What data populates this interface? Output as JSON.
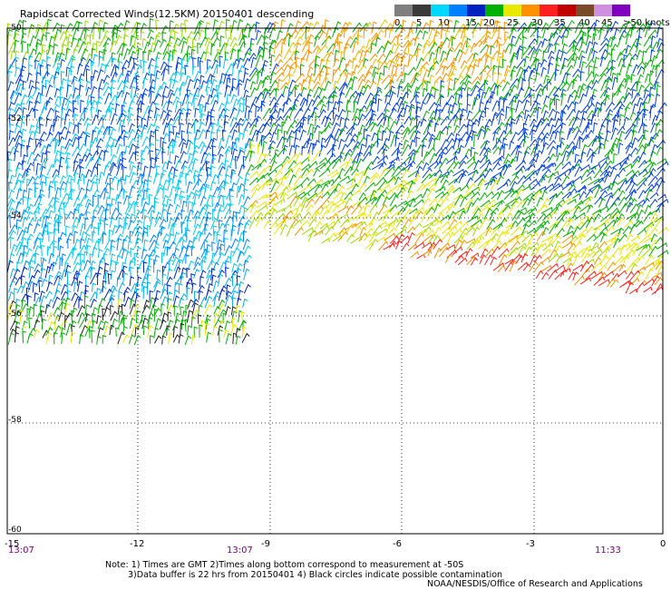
{
  "title": "Rapidscat Corrected Winds(12.5KM) 20150401 descending",
  "legend": {
    "labels": [
      "0",
      "5",
      "10",
      "15",
      "20",
      "25",
      "30",
      "35",
      "40",
      "45",
      ">50 knots"
    ],
    "colors": [
      "#7f7f7f",
      "#3a3a3a",
      "#00d8ff",
      "#0080ff",
      "#0020c0",
      "#00b000",
      "#e8e800",
      "#ff9000",
      "#ff2020",
      "#c00000",
      "#7a4a2a",
      "#d090e0",
      "#8000c0"
    ]
  },
  "axes": {
    "lat_labels": [
      "-50",
      "-52",
      "-54",
      "-56",
      "-58",
      "-60"
    ],
    "lon_labels": [
      "-15",
      "-12",
      "-9",
      "-6",
      "-3",
      "0"
    ]
  },
  "times": {
    "left": "13:07",
    "middle": "13:07",
    "right": "11:33"
  },
  "notes": {
    "line1": "Note: 1) Times are GMT 2)Times along bottom correspond to measurement at -50S",
    "line2": "3)Data buffer is 22 hrs from 20150401 4) Black circles indicate possible contamination"
  },
  "credit": "NOAA/NESDIS/Office of Research and Applications"
}
